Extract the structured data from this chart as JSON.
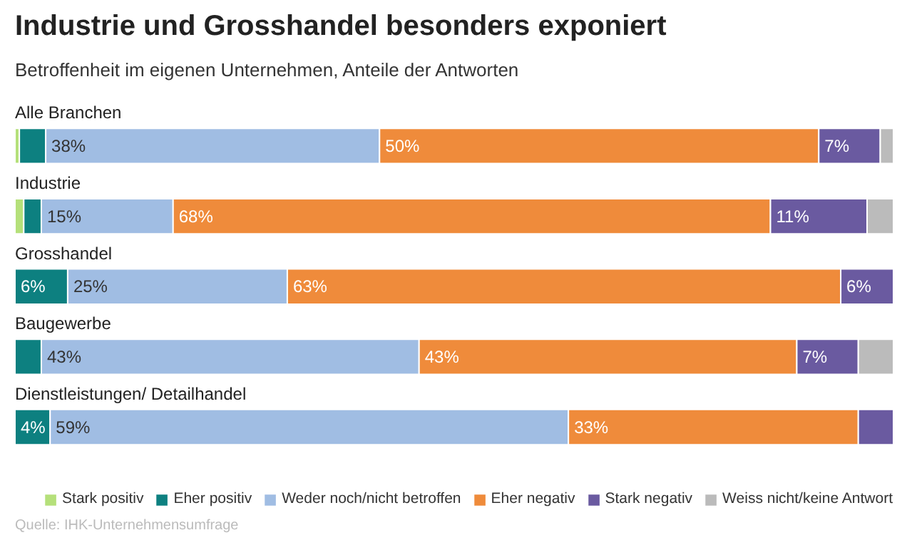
{
  "chart_data": {
    "type": "bar",
    "orientation": "horizontal",
    "stacked": true,
    "title": "Industrie und Grosshandel besonders exponiert",
    "subtitle": "Betroffenheit im eigenen Unternehmen, Anteile der Antworten",
    "categories": [
      "Alle Branchen",
      "Industrie",
      "Grosshandel",
      "Baugewerbe",
      "Dienstleistungen/ Detailhandel"
    ],
    "series": [
      {
        "name": "Stark positiv",
        "color": "#b5e07a",
        "values": [
          0.5,
          1,
          0,
          0,
          0
        ],
        "value_labels": [
          null,
          null,
          null,
          null,
          null
        ]
      },
      {
        "name": "Eher positiv",
        "color": "#0d8080",
        "values": [
          3,
          2,
          6,
          3,
          4
        ],
        "value_labels": [
          null,
          null,
          "6%",
          null,
          "4%"
        ]
      },
      {
        "name": "Weder noch/nicht betroffen",
        "color": "#a0bde3",
        "values": [
          38,
          15,
          25,
          43,
          59
        ],
        "value_labels": [
          "38%",
          "15%",
          "25%",
          "43%",
          "59%"
        ]
      },
      {
        "name": "Eher negativ",
        "color": "#ef8b3b",
        "values": [
          50,
          68,
          63,
          43,
          33
        ],
        "value_labels": [
          "50%",
          "68%",
          "63%",
          "43%",
          "33%"
        ]
      },
      {
        "name": "Stark negativ",
        "color": "#6a5aa0",
        "values": [
          7,
          11,
          6,
          7,
          4
        ],
        "value_labels": [
          "7%",
          "11%",
          "6%",
          "7%",
          null
        ]
      },
      {
        "name": "Weiss nicht/keine Antwort",
        "color": "#bbbbbb",
        "values": [
          1.5,
          3,
          0,
          4,
          0
        ],
        "value_labels": [
          null,
          null,
          null,
          null,
          null
        ]
      }
    ],
    "legend": "bottom",
    "tick_labels": false,
    "annotations": [
      "Quelle: IHK-Unternehmensumfrage"
    ]
  }
}
